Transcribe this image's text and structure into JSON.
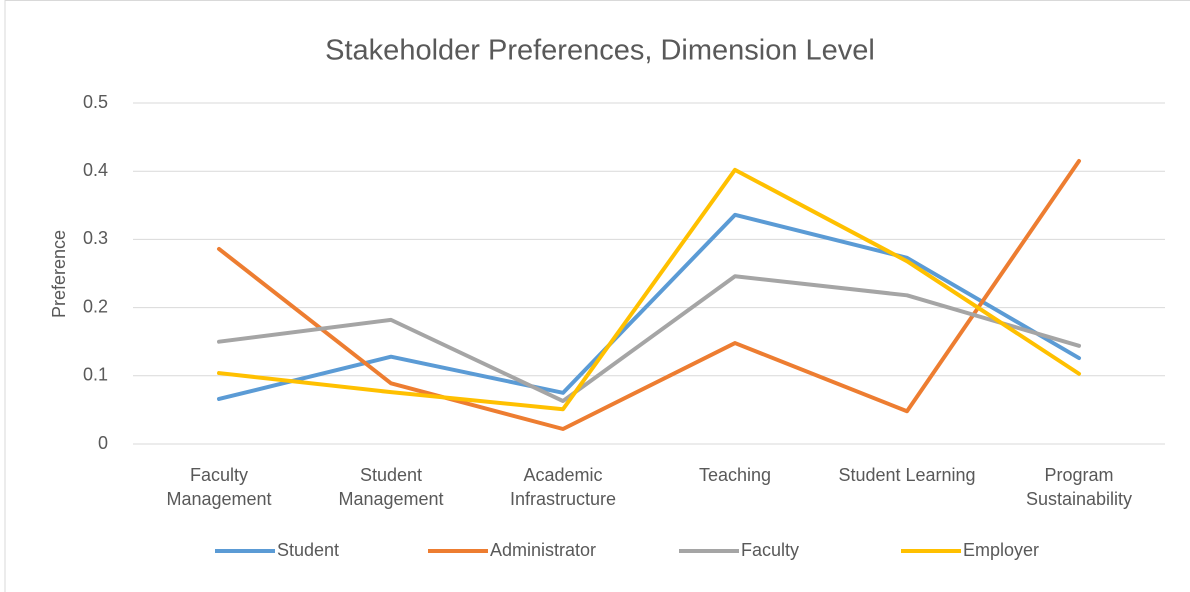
{
  "chart_data": {
    "type": "line",
    "title": "Stakeholder Preferences, Dimension Level",
    "y_label": "Preference",
    "categories": [
      "Faculty Management",
      "Student Management",
      "Academic Infrastructure",
      "Teaching",
      "Student Learning",
      "Program Sustainability"
    ],
    "series": [
      {
        "name": "Student",
        "color": "#5b9bd5",
        "values": [
          0.066,
          0.128,
          0.075,
          0.336,
          0.273,
          0.126
        ]
      },
      {
        "name": "Administrator",
        "color": "#ed7d31",
        "values": [
          0.286,
          0.089,
          0.022,
          0.148,
          0.048,
          0.415
        ]
      },
      {
        "name": "Faculty",
        "color": "#a5a5a5",
        "values": [
          0.15,
          0.182,
          0.063,
          0.246,
          0.218,
          0.144
        ]
      },
      {
        "name": "Employer",
        "color": "#ffc000",
        "values": [
          0.104,
          0.076,
          0.051,
          0.402,
          0.268,
          0.103
        ]
      }
    ],
    "ylim": [
      0,
      0.5
    ],
    "yticks": [
      0,
      0.1,
      0.2,
      0.3,
      0.4,
      0.5
    ],
    "grid": true,
    "legend": "bottom"
  }
}
